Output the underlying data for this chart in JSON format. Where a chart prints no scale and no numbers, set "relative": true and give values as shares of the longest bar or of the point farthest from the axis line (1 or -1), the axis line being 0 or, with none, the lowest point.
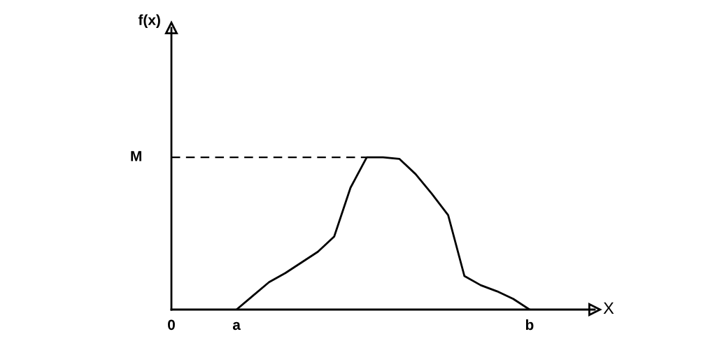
{
  "chart_data": {
    "type": "line",
    "relative": true,
    "annotations": [
      "f(x)"
    ],
    "xlabel": "X",
    "categories": [
      "0",
      null,
      null,
      null,
      "a",
      null,
      null,
      null,
      null,
      null,
      null,
      null,
      null,
      null,
      null,
      null,
      null,
      null,
      null,
      null,
      null,
      null,
      "b",
      null,
      null,
      null,
      null
    ],
    "series": [
      {
        "color": "#000000",
        "values": [
          null,
          null,
          null,
          null,
          0,
          0.09,
          0.18,
          0.24,
          0.31,
          0.38,
          0.48,
          0.8,
          1,
          1,
          0.99,
          0.89,
          0.76,
          0.62,
          0.22,
          0.16,
          0.12,
          0.07,
          0,
          null,
          null,
          null,
          null
        ]
      }
    ],
    "ref_lines": [
      {
        "axis": "y",
        "value": 1,
        "label": "M",
        "line_style": "dashed",
        "color": "#000000"
      }
    ],
    "grid": false,
    "marker": "none",
    "line_style": "solid"
  }
}
